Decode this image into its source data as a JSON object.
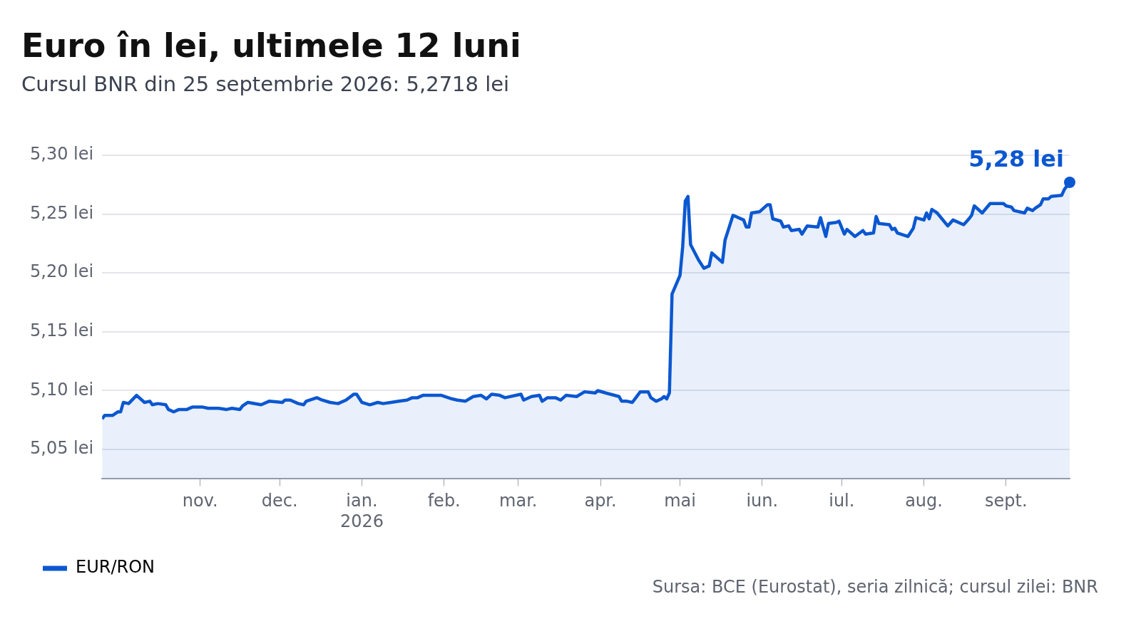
{
  "chart_data": {
    "type": "area",
    "title": "Euro în lei, ultimele 12 luni",
    "subtitle": "Cursul BNR din 25 septembrie 2026: 5,2718 lei",
    "xlim": [
      "2025-09-25",
      "2026-09-25"
    ],
    "xticks": [
      {
        "value": "2025-11-01",
        "label": "nov."
      },
      {
        "value": "2025-12-01",
        "label": "dec."
      },
      {
        "value": "2026-01-01",
        "label": "ian.\n2026"
      },
      {
        "value": "2026-02-01",
        "label": "feb."
      },
      {
        "value": "2026-03-01",
        "label": "mar."
      },
      {
        "value": "2026-04-01",
        "label": "apr."
      },
      {
        "value": "2026-05-01",
        "label": "mai"
      },
      {
        "value": "2026-06-01",
        "label": "iun."
      },
      {
        "value": "2026-07-01",
        "label": "iul."
      },
      {
        "value": "2026-08-01",
        "label": "aug."
      },
      {
        "value": "2026-09-01",
        "label": "sept."
      }
    ],
    "ylim": [
      5.025,
      5.3
    ],
    "yticks": [
      {
        "value": 5.05,
        "label": "5,05 lei"
      },
      {
        "value": 5.1,
        "label": "5,10 lei"
      },
      {
        "value": 5.15,
        "label": "5,15 lei"
      },
      {
        "value": 5.2,
        "label": "5,20 lei"
      },
      {
        "value": 5.25,
        "label": "5,25 lei"
      },
      {
        "value": 5.3,
        "label": "5,30 lei"
      }
    ],
    "grid": "y",
    "legend": "bottom left",
    "marker": "none",
    "series": [
      {
        "name": "EUR/RON",
        "color": "#0b57d0",
        "x": [
          "2025-09-25",
          "2025-09-26",
          "2025-09-29",
          "2025-10-01",
          "2025-10-02",
          "2025-10-03",
          "2025-10-05",
          "2025-10-08",
          "2025-10-11",
          "2025-10-13",
          "2025-10-14",
          "2025-10-16",
          "2025-10-19",
          "2025-10-20",
          "2025-10-22",
          "2025-10-24",
          "2025-10-27",
          "2025-10-29",
          "2025-11-02",
          "2025-11-04",
          "2025-11-08",
          "2025-11-11",
          "2025-11-13",
          "2025-11-16",
          "2025-11-17",
          "2025-11-19",
          "2025-11-24",
          "2025-11-27",
          "2025-12-02",
          "2025-12-03",
          "2025-12-05",
          "2025-12-08",
          "2025-12-10",
          "2025-12-11",
          "2025-12-15",
          "2025-12-17",
          "2025-12-20",
          "2025-12-23",
          "2025-12-26",
          "2025-12-29",
          "2025-12-30",
          "2026-01-01",
          "2026-01-04",
          "2026-01-07",
          "2026-01-09",
          "2026-01-12",
          "2026-01-15",
          "2026-01-18",
          "2026-01-20",
          "2026-01-22",
          "2026-01-24",
          "2026-01-31",
          "2026-02-04",
          "2026-02-06",
          "2026-02-09",
          "2026-02-12",
          "2026-02-15",
          "2026-02-17",
          "2026-02-19",
          "2026-02-22",
          "2026-02-24",
          "2026-03-02",
          "2026-03-03",
          "2026-03-06",
          "2026-03-09",
          "2026-03-10",
          "2026-03-12",
          "2026-03-15",
          "2026-03-17",
          "2026-03-19",
          "2026-03-23",
          "2026-03-26",
          "2026-03-30",
          "2026-03-31",
          "2026-04-03",
          "2026-04-08",
          "2026-04-09",
          "2026-04-11",
          "2026-04-13",
          "2026-04-14",
          "2026-04-16",
          "2026-04-19",
          "2026-04-20",
          "2026-04-22",
          "2026-04-24",
          "2026-04-25",
          "2026-04-26",
          "2026-04-27",
          "2026-04-28",
          "2026-05-01",
          "2026-05-02",
          "2026-05-03",
          "2026-05-04",
          "2026-05-05",
          "2026-05-08",
          "2026-05-10",
          "2026-05-12",
          "2026-05-13",
          "2026-05-17",
          "2026-05-18",
          "2026-05-19",
          "2026-05-21",
          "2026-05-25",
          "2026-05-26",
          "2026-05-27",
          "2026-05-28",
          "2026-05-31",
          "2026-06-03",
          "2026-06-04",
          "2026-06-05",
          "2026-06-08",
          "2026-06-09",
          "2026-06-11",
          "2026-06-12",
          "2026-06-15",
          "2026-06-16",
          "2026-06-18",
          "2026-06-22",
          "2026-06-23",
          "2026-06-25",
          "2026-06-26",
          "2026-06-29",
          "2026-06-30",
          "2026-07-02",
          "2026-07-03",
          "2026-07-06",
          "2026-07-09",
          "2026-07-10",
          "2026-07-13",
          "2026-07-14",
          "2026-07-15",
          "2026-07-19",
          "2026-07-20",
          "2026-07-21",
          "2026-07-22",
          "2026-07-26",
          "2026-07-28",
          "2026-07-29",
          "2026-08-01",
          "2026-08-02",
          "2026-08-03",
          "2026-08-04",
          "2026-08-06",
          "2026-08-10",
          "2026-08-12",
          "2026-08-16",
          "2026-08-18",
          "2026-08-19",
          "2026-08-20",
          "2026-08-23",
          "2026-08-26",
          "2026-08-31",
          "2026-09-01",
          "2026-09-03",
          "2026-09-04",
          "2026-09-08",
          "2026-09-09",
          "2026-09-11",
          "2026-09-12",
          "2026-09-14",
          "2026-09-15",
          "2026-09-17",
          "2026-09-18",
          "2026-09-22",
          "2026-09-23",
          "2026-09-25"
        ],
        "values": [
          5.076,
          5.079,
          5.079,
          5.082,
          5.082,
          5.09,
          5.089,
          5.096,
          5.09,
          5.091,
          5.088,
          5.089,
          5.088,
          5.084,
          5.082,
          5.084,
          5.084,
          5.086,
          5.086,
          5.085,
          5.085,
          5.084,
          5.085,
          5.084,
          5.087,
          5.09,
          5.088,
          5.091,
          5.09,
          5.092,
          5.092,
          5.089,
          5.088,
          5.091,
          5.094,
          5.092,
          5.09,
          5.089,
          5.092,
          5.097,
          5.097,
          5.09,
          5.088,
          5.09,
          5.089,
          5.09,
          5.091,
          5.092,
          5.094,
          5.094,
          5.096,
          5.096,
          5.093,
          5.092,
          5.091,
          5.095,
          5.096,
          5.093,
          5.097,
          5.096,
          5.094,
          5.097,
          5.092,
          5.095,
          5.096,
          5.091,
          5.094,
          5.094,
          5.092,
          5.096,
          5.095,
          5.099,
          5.098,
          5.1,
          5.098,
          5.095,
          5.091,
          5.091,
          5.09,
          5.093,
          5.099,
          5.099,
          5.094,
          5.091,
          5.093,
          5.095,
          5.093,
          5.098,
          5.182,
          5.198,
          5.222,
          5.261,
          5.265,
          5.224,
          5.211,
          5.204,
          5.206,
          5.217,
          5.209,
          5.228,
          5.235,
          5.249,
          5.245,
          5.239,
          5.239,
          5.251,
          5.252,
          5.258,
          5.258,
          5.246,
          5.244,
          5.239,
          5.24,
          5.236,
          5.237,
          5.233,
          5.24,
          5.239,
          5.247,
          5.231,
          5.242,
          5.243,
          5.244,
          5.233,
          5.237,
          5.231,
          5.236,
          5.233,
          5.234,
          5.248,
          5.242,
          5.241,
          5.237,
          5.238,
          5.234,
          5.231,
          5.238,
          5.247,
          5.245,
          5.251,
          5.246,
          5.254,
          5.251,
          5.24,
          5.245,
          5.241,
          5.246,
          5.249,
          5.257,
          5.251,
          5.259,
          5.259,
          5.257,
          5.256,
          5.253,
          5.251,
          5.255,
          5.253,
          5.255,
          5.258,
          5.263,
          5.263,
          5.265,
          5.266,
          5.271,
          5.277
        ]
      }
    ],
    "annotations": [
      {
        "text": "5,28 lei",
        "x": "2026-09-25",
        "y": 5.277
      },
      "Sursa: BCE (Eurostat), seria zilnică; cursul zilei: BNR"
    ]
  }
}
